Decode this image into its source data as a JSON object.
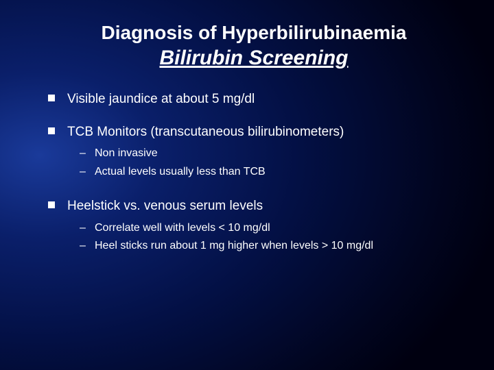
{
  "title": {
    "line1": "Diagnosis of Hyperbilirubinaemia",
    "line2": "Bilirubin Screening"
  },
  "bullets": [
    {
      "text": "Visible jaundice at about 5 mg/dl",
      "subs": []
    },
    {
      "text": "TCB Monitors (transcutaneous bilirubinometers)",
      "subs": [
        "Non invasive",
        "Actual levels usually less than TCB"
      ]
    },
    {
      "text": "Heelstick vs. venous serum levels",
      "subs": [
        "Correlate well with levels < 10 mg/dl",
        "Heel sticks run about 1 mg higher when levels > 10 mg/dl"
      ]
    }
  ],
  "style": {
    "background_gradient": [
      "#1a3a9a",
      "#0a1f6a",
      "#031045",
      "#010520",
      "#000010"
    ],
    "text_color": "#ffffff",
    "title_fontsize": 28,
    "subtitle_fontsize": 30,
    "bullet_fontsize": 19,
    "sub_fontsize": 16,
    "bullet_marker": "square",
    "sub_marker": "dash"
  }
}
